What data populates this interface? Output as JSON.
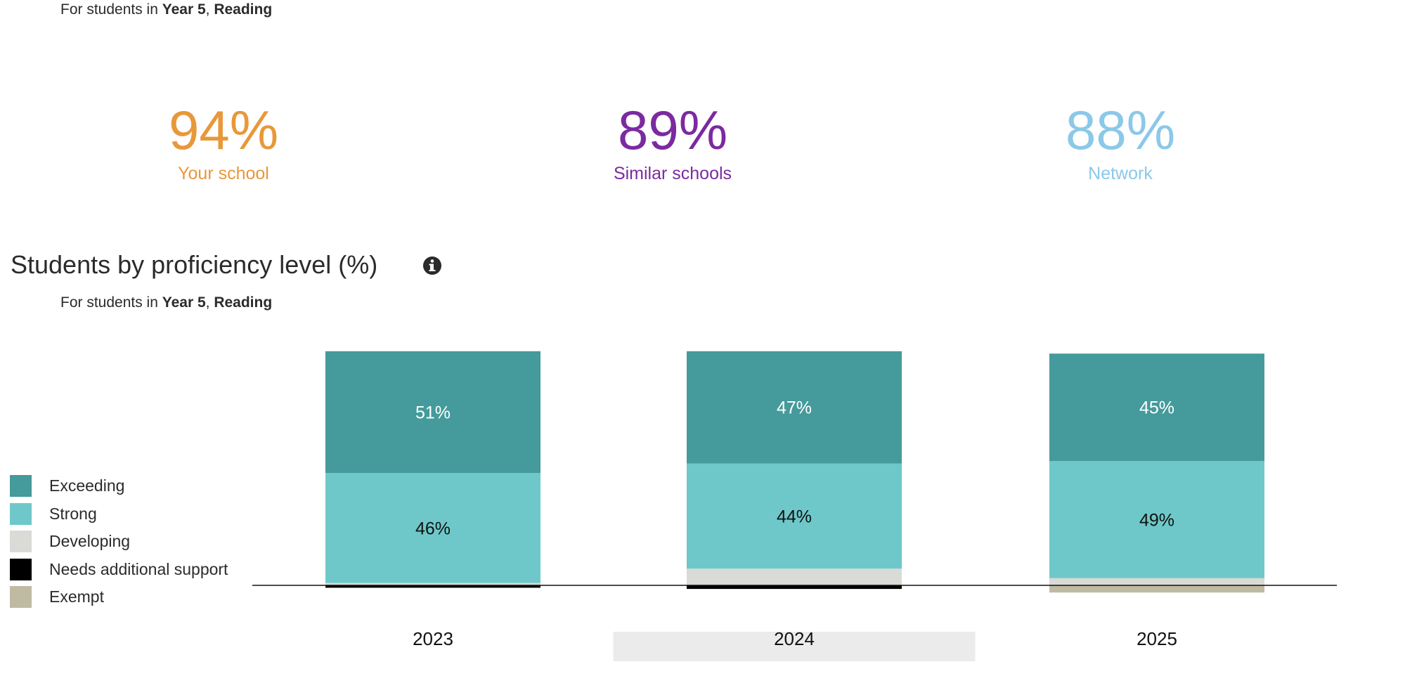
{
  "header": {
    "subtitle_prefix": "For students in ",
    "year": "Year 5",
    "separator": ", ",
    "subject": "Reading"
  },
  "stats": [
    {
      "value": "94%",
      "label": "Your school",
      "color": "#E8983A"
    },
    {
      "value": "89%",
      "label": "Similar schools",
      "color": "#7B2AA0"
    },
    {
      "value": "88%",
      "label": "Network",
      "color": "#8CC8E8"
    }
  ],
  "section": {
    "title": "Students by proficiency level (%)",
    "info_icon": "info-icon",
    "subtitle_prefix": "For students in ",
    "year": "Year 5",
    "separator": ", ",
    "subject": "Reading"
  },
  "chart_data": {
    "type": "bar",
    "stacked": true,
    "categories": [
      "2023",
      "2024",
      "2025"
    ],
    "highlighted_category": "2024",
    "series": [
      {
        "name": "Needs additional support",
        "color": "#000000",
        "values": [
          1,
          1.5,
          0
        ],
        "below_baseline": true
      },
      {
        "name": "Exempt",
        "color": "#BFBAA2",
        "values": [
          0,
          0,
          3
        ],
        "below_baseline": true
      },
      {
        "name": "Developing",
        "color": "#DADAD6",
        "values": [
          1,
          7,
          3
        ]
      },
      {
        "name": "Strong",
        "color": "#6EC8C9",
        "values": [
          46,
          44,
          49
        ],
        "label_color": "#111111",
        "labels": [
          "46%",
          "44%",
          "49%"
        ]
      },
      {
        "name": "Exceeding",
        "color": "#459A9B",
        "values": [
          51,
          47,
          45
        ],
        "label_color": "#ffffff",
        "labels": [
          "51%",
          "47%",
          "45%"
        ]
      }
    ],
    "legend": [
      "Exceeding",
      "Strong",
      "Developing",
      "Needs additional support",
      "Exempt"
    ],
    "legend_position": "left",
    "ylim": [
      0,
      100
    ],
    "grid": false
  }
}
